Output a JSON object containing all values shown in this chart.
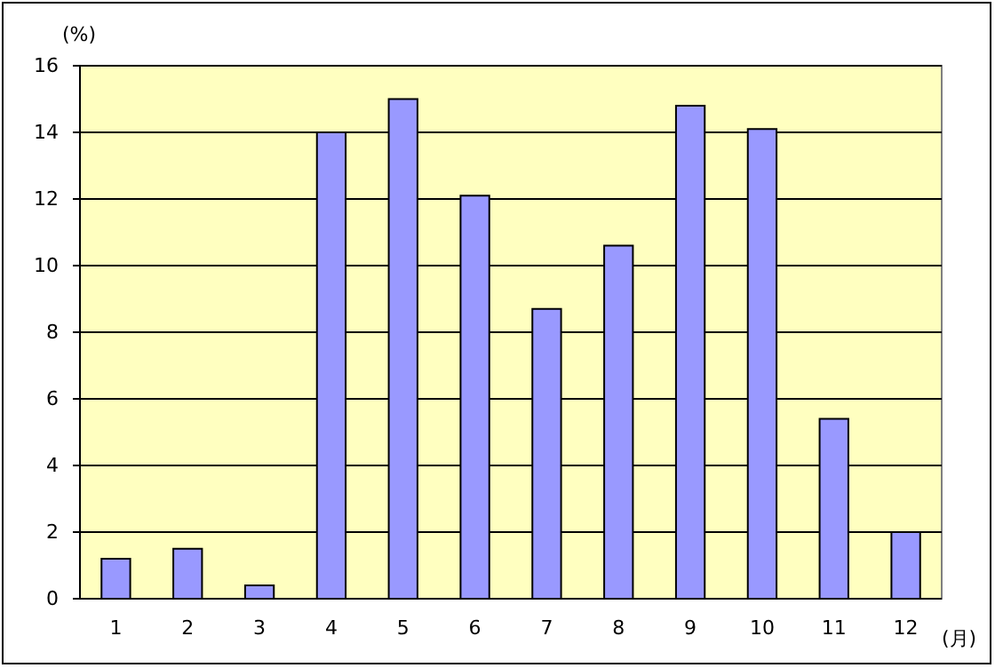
{
  "chart_data": {
    "type": "bar",
    "ylabel": "(%)",
    "xlabel": "(月)",
    "categories": [
      "1",
      "2",
      "3",
      "4",
      "5",
      "6",
      "7",
      "8",
      "9",
      "10",
      "11",
      "12"
    ],
    "values": [
      1.2,
      1.5,
      0.4,
      14.0,
      15.0,
      12.1,
      8.7,
      10.6,
      14.8,
      14.1,
      5.4,
      2.0
    ],
    "color": "#9999ff",
    "ylim": [
      0,
      16
    ],
    "yticks": [
      0,
      2,
      4,
      6,
      8,
      10,
      12,
      14,
      16
    ],
    "grid": "y"
  }
}
